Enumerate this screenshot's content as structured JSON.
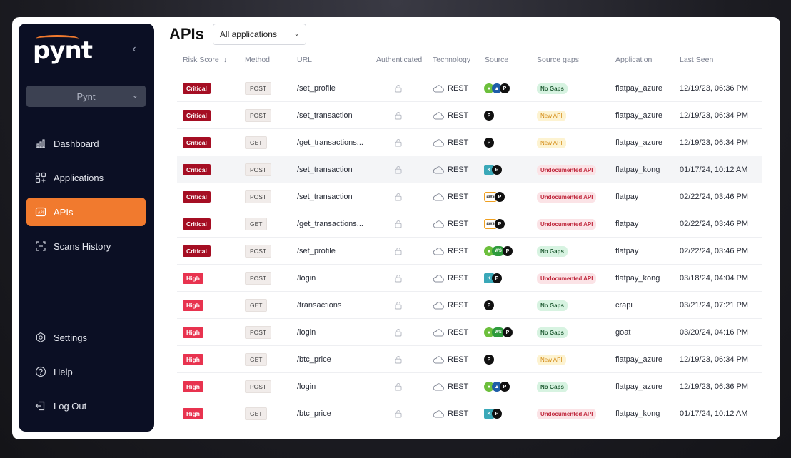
{
  "sidebar": {
    "logo_text": "pynt",
    "collapse_icon": "chevron-left-icon",
    "project_selector": "Pynt",
    "nav": [
      {
        "label": "Dashboard",
        "icon": "bar-chart-icon"
      },
      {
        "label": "Applications",
        "icon": "grid-plus-icon"
      },
      {
        "label": "APIs",
        "icon": "api-icon",
        "active": true
      },
      {
        "label": "Scans History",
        "icon": "scan-icon"
      }
    ],
    "bottom_nav": [
      {
        "label": "Settings",
        "icon": "gear-icon"
      },
      {
        "label": "Help",
        "icon": "help-icon"
      },
      {
        "label": "Log Out",
        "icon": "logout-icon"
      }
    ]
  },
  "header": {
    "title": "APIs",
    "app_filter": "All applications"
  },
  "table": {
    "columns": [
      "Risk Score",
      "Method",
      "URL",
      "Authenticated",
      "Technology",
      "Source",
      "Source gaps",
      "Application",
      "Last Seen"
    ],
    "sort_icon": "arrow-down-icon",
    "rows": [
      {
        "risk": "Critical",
        "method": "POST",
        "url": "/set_profile",
        "tech": "REST",
        "sources": [
          "g",
          "b",
          "p"
        ],
        "gap": "No Gaps",
        "app": "flatpay_azure",
        "seen": "12/19/23, 06:36 PM"
      },
      {
        "risk": "Critical",
        "method": "POST",
        "url": "/set_transaction",
        "tech": "REST",
        "sources": [
          "p"
        ],
        "gap": "New API",
        "app": "flatpay_azure",
        "seen": "12/19/23, 06:34 PM"
      },
      {
        "risk": "Critical",
        "method": "GET",
        "url": "/get_transactions...",
        "tech": "REST",
        "sources": [
          "p"
        ],
        "gap": "New API",
        "app": "flatpay_azure",
        "seen": "12/19/23, 06:34 PM"
      },
      {
        "risk": "Critical",
        "method": "POST",
        "url": "/set_transaction",
        "tech": "REST",
        "sources": [
          "k",
          "p"
        ],
        "gap": "Undocumented API",
        "app": "flatpay_kong",
        "seen": "01/17/24, 10:12 AM",
        "highlight": true
      },
      {
        "risk": "Critical",
        "method": "POST",
        "url": "/set_transaction",
        "tech": "REST",
        "sources": [
          "aws",
          "p"
        ],
        "gap": "Undocumented API",
        "app": "flatpay",
        "seen": "02/22/24, 03:46 PM"
      },
      {
        "risk": "Critical",
        "method": "GET",
        "url": "/get_transactions...",
        "tech": "REST",
        "sources": [
          "aws",
          "p"
        ],
        "gap": "Undocumented API",
        "app": "flatpay",
        "seen": "02/22/24, 03:46 PM"
      },
      {
        "risk": "Critical",
        "method": "POST",
        "url": "/set_profile",
        "tech": "REST",
        "sources": [
          "g",
          "ws",
          "p"
        ],
        "gap": "No Gaps",
        "app": "flatpay",
        "seen": "02/22/24, 03:46 PM"
      },
      {
        "risk": "High",
        "method": "POST",
        "url": "/login",
        "tech": "REST",
        "sources": [
          "k",
          "p"
        ],
        "gap": "Undocumented API",
        "app": "flatpay_kong",
        "seen": "03/18/24, 04:04 PM"
      },
      {
        "risk": "High",
        "method": "GET",
        "url": "/transactions",
        "tech": "REST",
        "sources": [
          "p"
        ],
        "gap": "No Gaps",
        "app": "crapi",
        "seen": "03/21/24, 07:21 PM"
      },
      {
        "risk": "High",
        "method": "POST",
        "url": "/login",
        "tech": "REST",
        "sources": [
          "g",
          "ws",
          "p"
        ],
        "gap": "No Gaps",
        "app": "goat",
        "seen": "03/20/24, 04:16 PM"
      },
      {
        "risk": "High",
        "method": "GET",
        "url": "/btc_price",
        "tech": "REST",
        "sources": [
          "p"
        ],
        "gap": "New API",
        "app": "flatpay_azure",
        "seen": "12/19/23, 06:34 PM"
      },
      {
        "risk": "High",
        "method": "POST",
        "url": "/login",
        "tech": "REST",
        "sources": [
          "g",
          "b",
          "p"
        ],
        "gap": "No Gaps",
        "app": "flatpay_azure",
        "seen": "12/19/23, 06:36 PM"
      },
      {
        "risk": "High",
        "method": "GET",
        "url": "/btc_price",
        "tech": "REST",
        "sources": [
          "k",
          "p"
        ],
        "gap": "Undocumented API",
        "app": "flatpay_kong",
        "seen": "01/17/24, 10:12 AM"
      }
    ]
  },
  "colors": {
    "accent": "#f17a2e",
    "critical": "#a50e23",
    "high": "#e8334f",
    "sidebar_bg": "#0b0f24"
  }
}
